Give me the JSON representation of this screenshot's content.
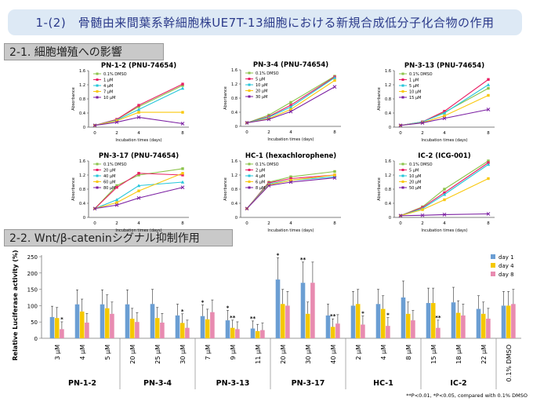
{
  "page_title": "1-(2)　骨髄由来間葉系幹細胞株UE7T-13細胞における新規合成低分子化合物の作用",
  "section1_title": "2-1. 細胞増殖への影響",
  "section2_title": "2-2. Wnt/β-cateninシグナル抑制作用",
  "footnote": "**P<0.01, *P<0.05, compared with 0.1% DMSO",
  "chart_data": [
    {
      "type": "line",
      "title": "PN-1-2 (PNU-74654)",
      "xlabel": "Incubation times (days)",
      "ylabel": "Absorbance",
      "x": [
        0,
        2,
        4,
        8
      ],
      "series": [
        {
          "name": "0.1% DMSO",
          "color": "#8bc34a",
          "marker": "s",
          "values": [
            0.05,
            0.22,
            0.58,
            1.18
          ]
        },
        {
          "name": "1 μM",
          "color": "#e91e63",
          "marker": "s",
          "values": [
            0.05,
            0.22,
            0.62,
            1.22
          ]
        },
        {
          "name": "4 μM",
          "color": "#26c6da",
          "marker": "^",
          "values": [
            0.05,
            0.2,
            0.5,
            1.1
          ]
        },
        {
          "name": "7 μM",
          "color": "#f9c80e",
          "marker": "s",
          "values": [
            0.05,
            0.18,
            0.42,
            0.42
          ]
        },
        {
          "name": "10 μM",
          "color": "#7b1fa2",
          "marker": "x",
          "values": [
            0.05,
            0.14,
            0.28,
            0.1
          ]
        }
      ]
    },
    {
      "type": "line",
      "title": "PN-3-4 (PNU-74654)",
      "xlabel": "Incubation times (days)",
      "ylabel": "Absorbance",
      "x": [
        0,
        2,
        4,
        8
      ],
      "series": [
        {
          "name": "0.1% DMSO",
          "color": "#8bc34a",
          "marker": "s",
          "values": [
            0.1,
            0.32,
            0.68,
            1.42
          ]
        },
        {
          "name": "5 μM",
          "color": "#e91e63",
          "marker": "s",
          "values": [
            0.1,
            0.28,
            0.6,
            1.4
          ]
        },
        {
          "name": "10 μM",
          "color": "#26c6da",
          "marker": "^",
          "values": [
            0.1,
            0.26,
            0.55,
            1.38
          ]
        },
        {
          "name": "20 μM",
          "color": "#f9c80e",
          "marker": "s",
          "values": [
            0.1,
            0.22,
            0.48,
            1.3
          ]
        },
        {
          "name": "30 μM",
          "color": "#7b1fa2",
          "marker": "x",
          "values": [
            0.1,
            0.2,
            0.42,
            1.12
          ]
        }
      ]
    },
    {
      "type": "line",
      "title": "PN-3-13 (PNU-74654)",
      "xlabel": "Incubation times (days)",
      "ylabel": "Absorbance",
      "x": [
        0,
        2,
        4,
        8
      ],
      "series": [
        {
          "name": "0.1% DMSO",
          "color": "#8bc34a",
          "marker": "s",
          "values": [
            0.05,
            0.15,
            0.42,
            1.1
          ]
        },
        {
          "name": "1 μM",
          "color": "#e91e63",
          "marker": "s",
          "values": [
            0.05,
            0.15,
            0.45,
            1.35
          ]
        },
        {
          "name": "5 μM",
          "color": "#26c6da",
          "marker": "^",
          "values": [
            0.05,
            0.15,
            0.4,
            1.2
          ]
        },
        {
          "name": "10 μM",
          "color": "#f9c80e",
          "marker": "s",
          "values": [
            0.05,
            0.13,
            0.32,
            0.9
          ]
        },
        {
          "name": "15 μM",
          "color": "#7b1fa2",
          "marker": "x",
          "values": [
            0.05,
            0.12,
            0.25,
            0.5
          ]
        }
      ]
    },
    {
      "type": "line",
      "title": "PN-3-17 (PNU-74654)",
      "xlabel": "Incubation times (days)",
      "ylabel": "Absorbance",
      "x": [
        0,
        2,
        4,
        8
      ],
      "series": [
        {
          "name": "0.1% DMSO",
          "color": "#8bc34a",
          "marker": "s",
          "values": [
            0.25,
            0.9,
            1.2,
            1.38
          ]
        },
        {
          "name": "20 μM",
          "color": "#e91e63",
          "marker": "s",
          "values": [
            0.25,
            0.85,
            1.25,
            1.2
          ]
        },
        {
          "name": "40 μM",
          "color": "#26c6da",
          "marker": "^",
          "values": [
            0.25,
            0.5,
            0.9,
            1.0
          ]
        },
        {
          "name": "60 μM",
          "color": "#f9c80e",
          "marker": "s",
          "values": [
            0.25,
            0.42,
            0.75,
            1.25
          ]
        },
        {
          "name": "80 μM",
          "color": "#7b1fa2",
          "marker": "x",
          "values": [
            0.25,
            0.35,
            0.55,
            0.85
          ]
        }
      ]
    },
    {
      "type": "line",
      "title": "HC-1 (hexachlorophene)",
      "xlabel": "Incubation times (days)",
      "ylabel": "Absorbance",
      "x": [
        0,
        2,
        4,
        8
      ],
      "series": [
        {
          "name": "0.1% DMSO",
          "color": "#8bc34a",
          "marker": "s",
          "values": [
            0.25,
            1.0,
            1.15,
            1.3
          ]
        },
        {
          "name": "2 μM",
          "color": "#e91e63",
          "marker": "s",
          "values": [
            0.25,
            0.98,
            1.1,
            1.2
          ]
        },
        {
          "name": "4 μM",
          "color": "#26c6da",
          "marker": "^",
          "values": [
            0.25,
            0.95,
            1.05,
            1.15
          ]
        },
        {
          "name": "6 μM",
          "color": "#f9c80e",
          "marker": "s",
          "values": [
            0.25,
            0.92,
            1.05,
            1.2
          ]
        },
        {
          "name": "8 μM",
          "color": "#7b1fa2",
          "marker": "x",
          "values": [
            0.25,
            0.9,
            1.0,
            1.12
          ]
        }
      ]
    },
    {
      "type": "line",
      "title": "IC-2 (ICG-001)",
      "xlabel": "Incubation times (days)",
      "ylabel": "Absorbance",
      "x": [
        0,
        2,
        4,
        8
      ],
      "series": [
        {
          "name": "0.1% DMSO",
          "color": "#8bc34a",
          "marker": "s",
          "values": [
            0.05,
            0.3,
            0.8,
            1.6
          ]
        },
        {
          "name": "5 μM",
          "color": "#e91e63",
          "marker": "s",
          "values": [
            0.05,
            0.28,
            0.7,
            1.55
          ]
        },
        {
          "name": "10 μM",
          "color": "#26c6da",
          "marker": "^",
          "values": [
            0.05,
            0.25,
            0.65,
            1.5
          ]
        },
        {
          "name": "20 μM",
          "color": "#f9c80e",
          "marker": "s",
          "values": [
            0.05,
            0.22,
            0.5,
            1.1
          ]
        },
        {
          "name": "50 μM",
          "color": "#7b1fa2",
          "marker": "x",
          "values": [
            0.05,
            0.06,
            0.08,
            0.1
          ]
        }
      ]
    },
    {
      "type": "bar",
      "ylabel": "Relative Luciferase activity (%)",
      "ylim": [
        0,
        250
      ],
      "yticks": [
        0,
        50,
        100,
        150,
        200,
        250
      ],
      "legend": {
        "position": "top-right"
      },
      "series": [
        {
          "name": "day 1",
          "color": "#6b9ed3"
        },
        {
          "name": "day 4",
          "color": "#f5c800"
        },
        {
          "name": "day 8",
          "color": "#e88bb0"
        }
      ],
      "groups": [
        {
          "name": "PN-1-2",
          "items": [
            {
              "label": "3 μM",
              "values": [
                65,
                62,
                28
              ],
              "sig": [
                "",
                "",
                "*"
              ]
            },
            {
              "label": "4 μM",
              "values": [
                104,
                82,
                48
              ],
              "sig": [
                "",
                "",
                ""
              ]
            },
            {
              "label": "5 μM",
              "values": [
                104,
                92,
                75
              ],
              "sig": [
                "",
                "",
                ""
              ]
            }
          ]
        },
        {
          "name": "PN-3-4",
          "items": [
            {
              "label": "20 μM",
              "values": [
                104,
                60,
                50
              ],
              "sig": [
                "",
                "",
                ""
              ]
            },
            {
              "label": "25 μM",
              "values": [
                105,
                62,
                48
              ],
              "sig": [
                "",
                "",
                ""
              ]
            },
            {
              "label": "30 μM",
              "values": [
                70,
                47,
                32
              ],
              "sig": [
                "",
                "*",
                ""
              ]
            }
          ]
        },
        {
          "name": "PN-3-13",
          "items": [
            {
              "label": "7 μM",
              "values": [
                68,
                58,
                80
              ],
              "sig": [
                "*",
                "",
                ""
              ]
            },
            {
              "label": "9 μM",
              "values": [
                55,
                32,
                28
              ],
              "sig": [
                "*",
                "**",
                ""
              ]
            },
            {
              "label": "11 μM",
              "values": [
                30,
                22,
                25
              ],
              "sig": [
                "**",
                "",
                ""
              ]
            }
          ]
        },
        {
          "name": "PN-3-17",
          "items": [
            {
              "label": "20 μM",
              "values": [
                180,
                105,
                100
              ],
              "sig": [
                "*",
                "",
                ""
              ]
            },
            {
              "label": "30 μM",
              "values": [
                170,
                75,
                170
              ],
              "sig": [
                "**",
                "",
                ""
              ]
            },
            {
              "label": "40 μM",
              "values": [
                70,
                35,
                45
              ],
              "sig": [
                "",
                "**",
                ""
              ]
            }
          ]
        },
        {
          "name": "HC-1",
          "items": [
            {
              "label": "2 μM",
              "values": [
                100,
                105,
                42
              ],
              "sig": [
                "",
                "",
                "*"
              ]
            },
            {
              "label": "4 μM",
              "values": [
                105,
                90,
                38
              ],
              "sig": [
                "",
                "",
                "*"
              ]
            },
            {
              "label": "8 μM",
              "values": [
                125,
                75,
                55
              ],
              "sig": [
                "",
                "",
                ""
              ]
            }
          ]
        },
        {
          "name": "IC-2",
          "items": [
            {
              "label": "15 μM",
              "values": [
                108,
                108,
                32
              ],
              "sig": [
                "",
                "",
                "**"
              ]
            },
            {
              "label": "18 μM",
              "values": [
                110,
                78,
                70
              ],
              "sig": [
                "",
                "",
                ""
              ]
            },
            {
              "label": "22 μM",
              "values": [
                90,
                75,
                60
              ],
              "sig": [
                "",
                "",
                ""
              ]
            }
          ]
        },
        {
          "name": "",
          "items": [
            {
              "label": "0.1% DMSO",
              "values": [
                100,
                100,
                105
              ],
              "sig": [
                "",
                "",
                ""
              ]
            }
          ]
        }
      ]
    }
  ]
}
